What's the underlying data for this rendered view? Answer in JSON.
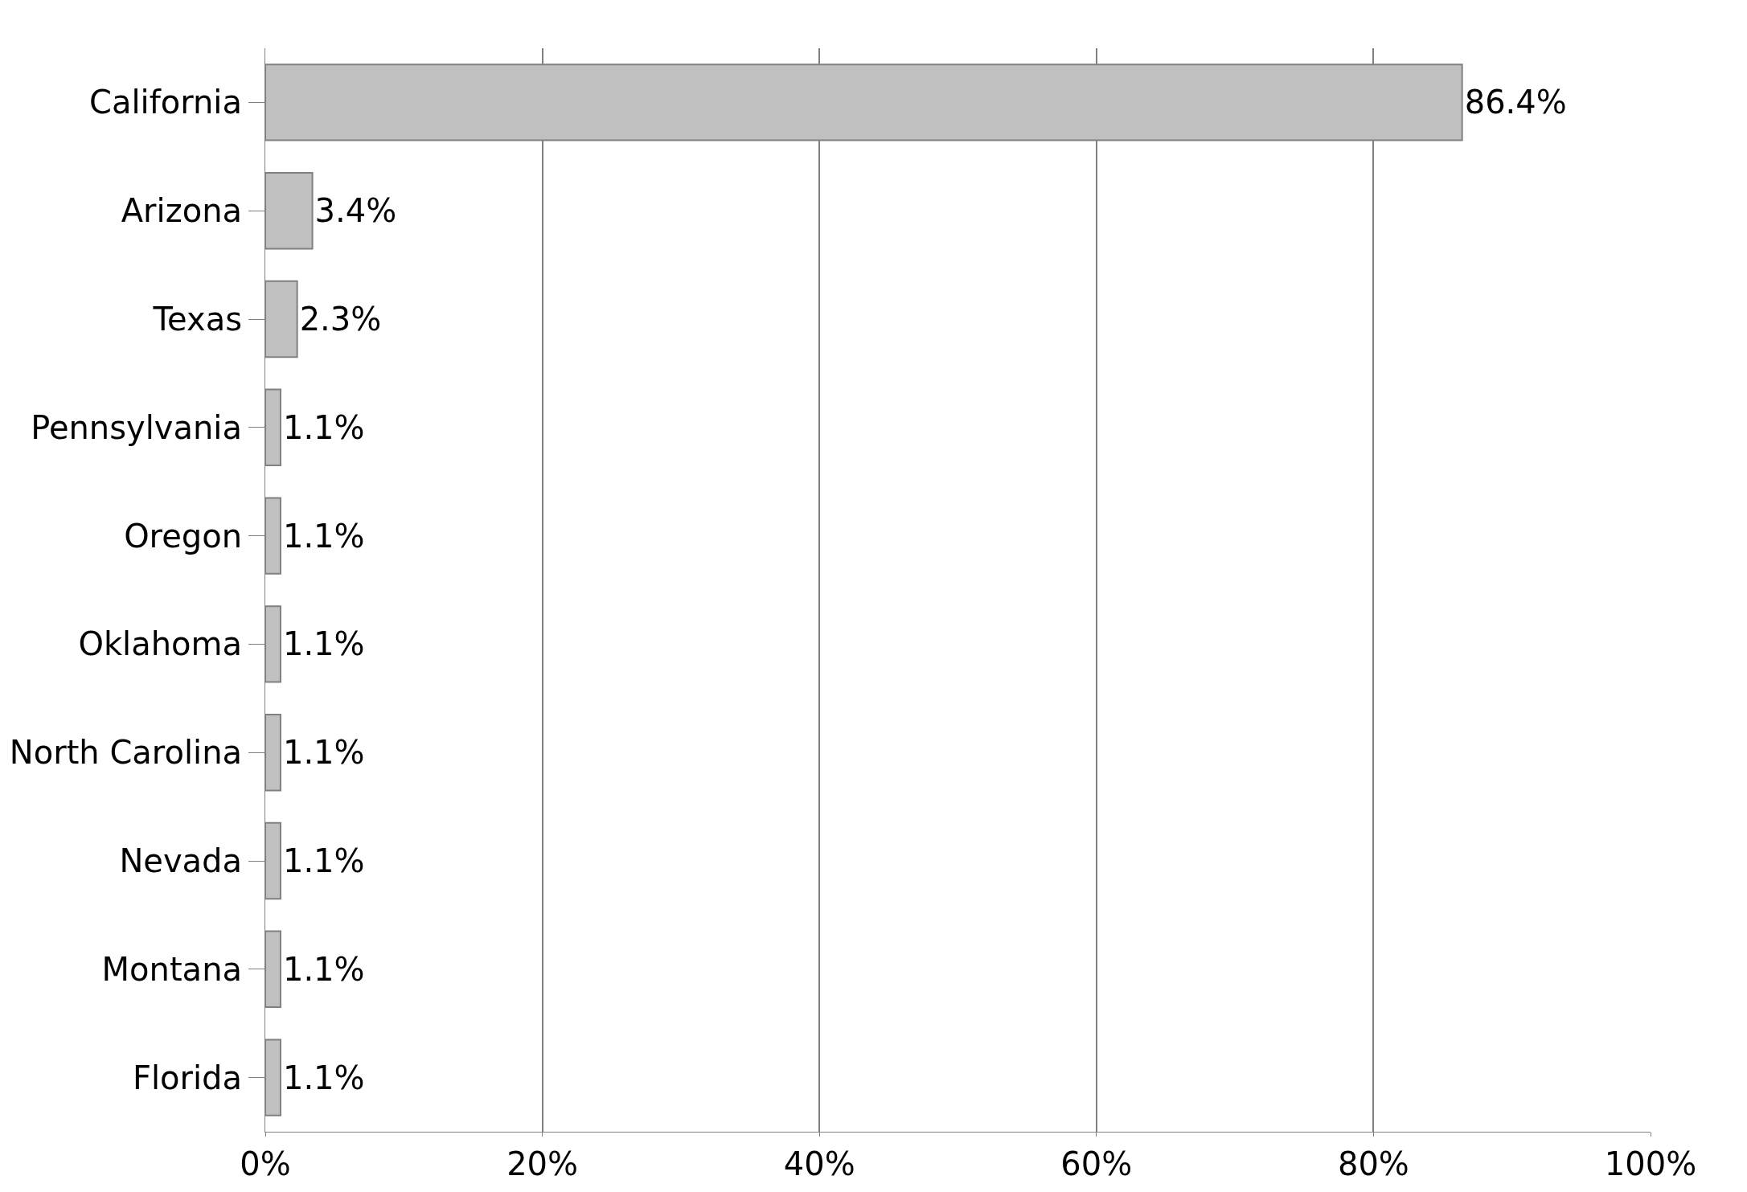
{
  "chart_data": {
    "type": "bar",
    "orientation": "horizontal",
    "categories": [
      "California",
      "Arizona",
      "Texas",
      "Pennsylvania",
      "Oregon",
      "Oklahoma",
      "North Carolina",
      "Nevada",
      "Montana",
      "Florida"
    ],
    "values": [
      86.4,
      3.4,
      2.3,
      1.1,
      1.1,
      1.1,
      1.1,
      1.1,
      1.1,
      1.1
    ],
    "value_labels": [
      "86.4%",
      "3.4%",
      "2.3%",
      "1.1%",
      "1.1%",
      "1.1%",
      "1.1%",
      "1.1%",
      "1.1%",
      "1.1%"
    ],
    "color": "#c0c0c0",
    "xlim": [
      0,
      100
    ],
    "xticks": [
      {
        "value": 0,
        "label": "0%"
      },
      {
        "value": 20,
        "label": "20%"
      },
      {
        "value": 40,
        "label": "40%"
      },
      {
        "value": 60,
        "label": "60%"
      },
      {
        "value": 80,
        "label": "80%"
      },
      {
        "value": 100,
        "label": "100%"
      }
    ],
    "grid": "x",
    "legend": false
  }
}
